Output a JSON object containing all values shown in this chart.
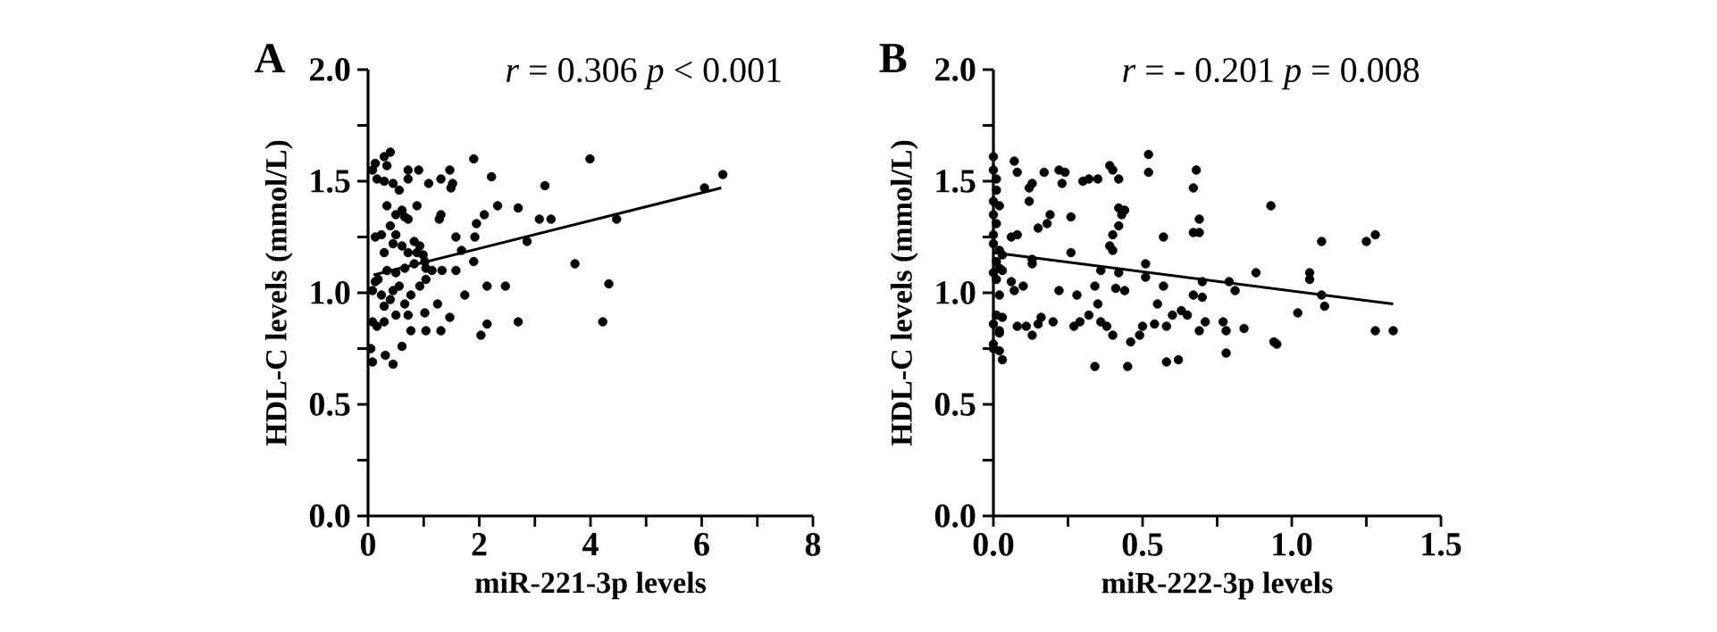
{
  "chart_data": [
    {
      "type": "scatter",
      "title": "A",
      "xlabel": "miR-221-3p levels",
      "ylabel": "HDL-C levels (mmol/L)",
      "annotations": [
        "*r* = 0.306 *p* < 0.001"
      ],
      "xlim": [
        0,
        8
      ],
      "ylim": [
        0,
        2.0
      ],
      "xticks": [
        0,
        {
          "value": 1,
          "label": null
        },
        2,
        {
          "value": 3,
          "label": null
        },
        4,
        {
          "value": 5,
          "label": null
        },
        6,
        {
          "value": 7,
          "label": null
        },
        8
      ],
      "yticks": [
        {
          "value": 0,
          "label": "0.0"
        },
        {
          "value": 0.25,
          "label": null
        },
        {
          "value": 0.5,
          "label": "0.5"
        },
        {
          "value": 0.75,
          "label": null
        },
        {
          "value": 1.0,
          "label": "1.0"
        },
        {
          "value": 1.25,
          "label": null
        },
        {
          "value": 1.5,
          "label": "1.5"
        },
        {
          "value": 1.75,
          "label": null
        },
        {
          "value": 2.0,
          "label": "2.0"
        }
      ],
      "series": [
        {
          "color": "#000000",
          "marker": "circle",
          "x": [
            1.9,
            2.22,
            3.18,
            3.99,
            6.38,
            6.05,
            4.47,
            3.29,
            3.08,
            2.7,
            2.33,
            2.86,
            3.72,
            4.33,
            4.22,
            2.7,
            2.47,
            2.14,
            2.14,
            2.03,
            1.9,
            1.74,
            1.92,
            1.95,
            2.09,
            1.68,
            1.58,
            1.58,
            1.47,
            1.33,
            1.25,
            1.31,
            1.04,
            1.02,
            0.77,
            0.61,
            0.45,
            0.31,
            0.08,
            0.05,
            0.16,
            0.08,
            0.29,
            0.5,
            0.72,
            0.66,
            0.77,
            0.93,
            1.04,
            1.15,
            1.02,
            0.83,
            0.66,
            0.5,
            0.34,
            0.18,
            0.24,
            0.4,
            0.29,
            0.45,
            0.56,
            0.13,
            0.08,
            0.72,
            0.88,
            0.99,
            0.93,
            0.61,
            0.45,
            0.29,
            0.13,
            0.24,
            0.5,
            0.4,
            0.66,
            0.72,
            0.5,
            0.34,
            0.61,
            0.88,
            1.31,
            1.28,
            1.09,
            1.31,
            1.47,
            1.52,
            1.49,
            0.91,
            0.72,
            0.72,
            0.56,
            0.45,
            0.29,
            0.16,
            0.08,
            0.34,
            0.13,
            0.4,
            0.29,
            0.83,
            1.04
          ],
          "values": [
            1.6,
            1.52,
            1.48,
            1.6,
            1.53,
            1.47,
            1.33,
            1.33,
            1.33,
            1.38,
            1.39,
            1.23,
            1.13,
            1.04,
            0.87,
            0.87,
            1.03,
            1.03,
            0.86,
            0.81,
            1.14,
            0.99,
            1.25,
            1.31,
            1.35,
            1.19,
            1.25,
            1.1,
            0.89,
            1.1,
            0.95,
            0.83,
            0.83,
            0.91,
            0.83,
            0.76,
            0.68,
            0.72,
            0.69,
            0.75,
            0.85,
            0.87,
            0.87,
            0.9,
            0.9,
            0.95,
            0.99,
            1.03,
            1.06,
            1.1,
            1.14,
            1.13,
            1.11,
            1.09,
            1.1,
            1.06,
            0.99,
            0.97,
            0.94,
            1.01,
            1.03,
            1.05,
            1.01,
            1.18,
            1.18,
            1.17,
            1.21,
            1.21,
            1.22,
            1.18,
            1.25,
            1.26,
            1.26,
            1.3,
            1.34,
            1.33,
            1.35,
            1.39,
            1.37,
            1.39,
            1.35,
            1.33,
            1.49,
            1.51,
            1.55,
            1.49,
            1.47,
            1.55,
            1.55,
            1.51,
            1.46,
            1.49,
            1.5,
            1.51,
            1.55,
            1.57,
            1.58,
            1.63,
            1.61,
            1.23,
            1.11
          ]
        },
        {
          "type": "line",
          "color": "#000000",
          "marker": "none",
          "x": [
            0.1,
            6.35
          ],
          "values": [
            1.08,
            1.47
          ]
        }
      ]
    },
    {
      "type": "scatter",
      "title": "B",
      "xlabel": "miR-222-3p levels",
      "ylabel": "HDL-C levels (mmol/L)",
      "annotations": [
        "*r* = - 0.201 *p* = 0.008"
      ],
      "xlim": [
        0,
        1.5
      ],
      "ylim": [
        0,
        2.0
      ],
      "xticks": [
        {
          "value": 0,
          "label": "0.0"
        },
        {
          "value": 0.25,
          "label": null
        },
        {
          "value": 0.5,
          "label": "0.5"
        },
        {
          "value": 0.75,
          "label": null
        },
        {
          "value": 1.0,
          "label": "1.0"
        },
        {
          "value": 1.25,
          "label": null
        },
        {
          "value": 1.5,
          "label": "1.5"
        }
      ],
      "yticks": [
        {
          "value": 0,
          "label": "0.0"
        },
        {
          "value": 0.25,
          "label": null
        },
        {
          "value": 0.5,
          "label": "0.5"
        },
        {
          "value": 0.75,
          "label": null
        },
        {
          "value": 1.0,
          "label": "1.0"
        },
        {
          "value": 1.25,
          "label": null
        },
        {
          "value": 1.5,
          "label": "1.5"
        },
        {
          "value": 1.75,
          "label": null
        },
        {
          "value": 2.0,
          "label": "2.0"
        }
      ],
      "series": [
        {
          "color": "#000000",
          "marker": "circle",
          "x": [
            0.0,
            0.0,
            0.01,
            0.01,
            0.0,
            0.02,
            0.0,
            0.01,
            0.0,
            0.0,
            0.02,
            0.03,
            0.01,
            0.02,
            0.0,
            0.01,
            0.03,
            0.02,
            0.01,
            0.03,
            0.02,
            0.0,
            0.02,
            0.0,
            0.02,
            0.03,
            0.0,
            0.07,
            0.08,
            0.13,
            0.12,
            0.17,
            0.22,
            0.23,
            0.24,
            0.3,
            0.32,
            0.35,
            0.39,
            0.4,
            0.42,
            0.52,
            0.52,
            0.68,
            0.67,
            0.67,
            0.69,
            0.69,
            0.93,
            1.25,
            1.28,
            1.1,
            1.06,
            1.06,
            1.1,
            1.11,
            1.02,
            0.94,
            0.95,
            0.88,
            0.84,
            0.78,
            0.78,
            0.77,
            0.79,
            0.81,
            0.7,
            0.67,
            0.7,
            0.71,
            0.69,
            0.65,
            0.63,
            0.6,
            0.62,
            0.57,
            0.55,
            0.54,
            0.58,
            0.5,
            0.49,
            0.51,
            0.51,
            0.44,
            0.45,
            0.46,
            0.42,
            0.41,
            0.4,
            0.42,
            0.43,
            0.44,
            0.39,
            0.36,
            0.34,
            0.34,
            0.35,
            0.36,
            0.38,
            0.4,
            0.32,
            0.29,
            0.27,
            0.28,
            0.26,
            0.26,
            0.22,
            0.2,
            0.16,
            0.13,
            0.15,
            0.1,
            0.11,
            0.08,
            0.07,
            0.06,
            0.08,
            0.06,
            0.13,
            0.13,
            0.15,
            0.12,
            0.19,
            0.18,
            0.4,
            0.42,
            0.57,
            0.58,
            1.34,
            1.28
          ],
          "values": [
            1.61,
            1.55,
            1.51,
            1.46,
            1.41,
            1.39,
            1.35,
            1.31,
            1.26,
            1.22,
            1.19,
            1.17,
            1.14,
            1.11,
            1.09,
            1.06,
            1.1,
            0.99,
            0.9,
            0.89,
            0.83,
            0.86,
            0.82,
            0.77,
            0.74,
            0.7,
            0.75,
            1.59,
            1.54,
            1.49,
            1.47,
            1.54,
            1.55,
            1.49,
            1.54,
            1.5,
            1.51,
            1.51,
            1.57,
            1.55,
            1.51,
            1.62,
            1.54,
            1.55,
            1.47,
            1.27,
            1.27,
            1.33,
            1.39,
            1.23,
            1.26,
            1.23,
            1.09,
            1.06,
            0.99,
            0.94,
            0.91,
            0.78,
            0.77,
            1.09,
            0.84,
            0.73,
            0.83,
            0.87,
            1.05,
            1.01,
            1.05,
            0.99,
            0.98,
            0.87,
            0.83,
            0.9,
            0.92,
            0.9,
            0.7,
            1.03,
            0.95,
            0.86,
            0.85,
            0.85,
            0.81,
            1.07,
            1.13,
            1.01,
            0.67,
            0.78,
            1.09,
            1.02,
            1.26,
            1.3,
            1.35,
            1.37,
            1.21,
            1.1,
            1.03,
            0.67,
            0.95,
            0.87,
            0.85,
            0.81,
            0.9,
            0.87,
            0.85,
            0.99,
            1.18,
            1.34,
            1.01,
            0.87,
            0.89,
            0.81,
            0.86,
            1.03,
            0.85,
            0.85,
            1.01,
            1.05,
            1.26,
            1.25,
            1.15,
            1.13,
            1.29,
            1.41,
            1.35,
            1.31,
            1.19,
            1.38,
            1.25,
            0.69,
            0.83,
            0.83
          ]
        },
        {
          "type": "line",
          "color": "#000000",
          "marker": "none",
          "x": [
            0.0,
            1.34
          ],
          "values": [
            1.18,
            0.95
          ]
        }
      ]
    }
  ]
}
